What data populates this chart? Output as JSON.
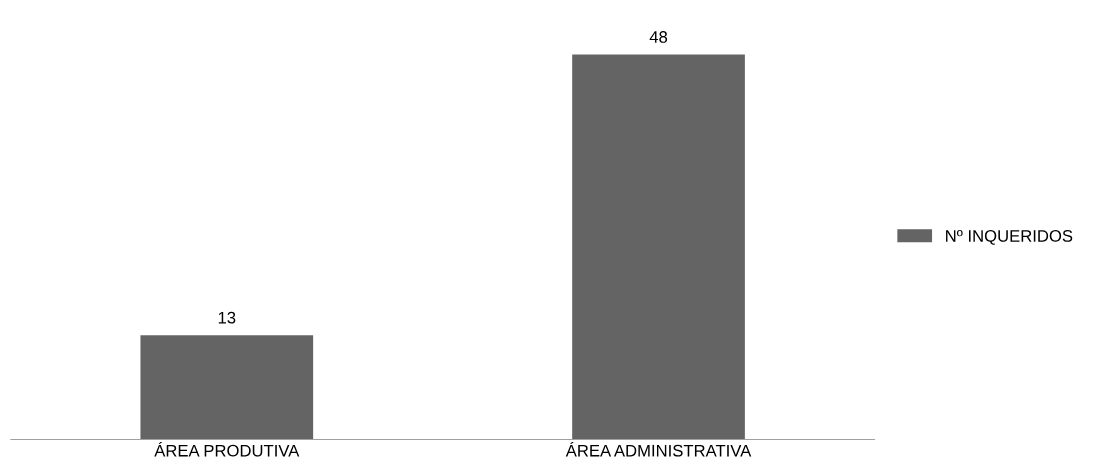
{
  "chart_data": {
    "type": "bar",
    "categories": [
      "ÁREA PRODUTIVA",
      "ÁREA ADMINISTRATIVA"
    ],
    "series": [
      {
        "name": "Nº INQUERIDOS",
        "color": "#646464",
        "values": [
          13,
          48
        ]
      }
    ],
    "data_labels": true,
    "legend": "right",
    "grid": false
  }
}
